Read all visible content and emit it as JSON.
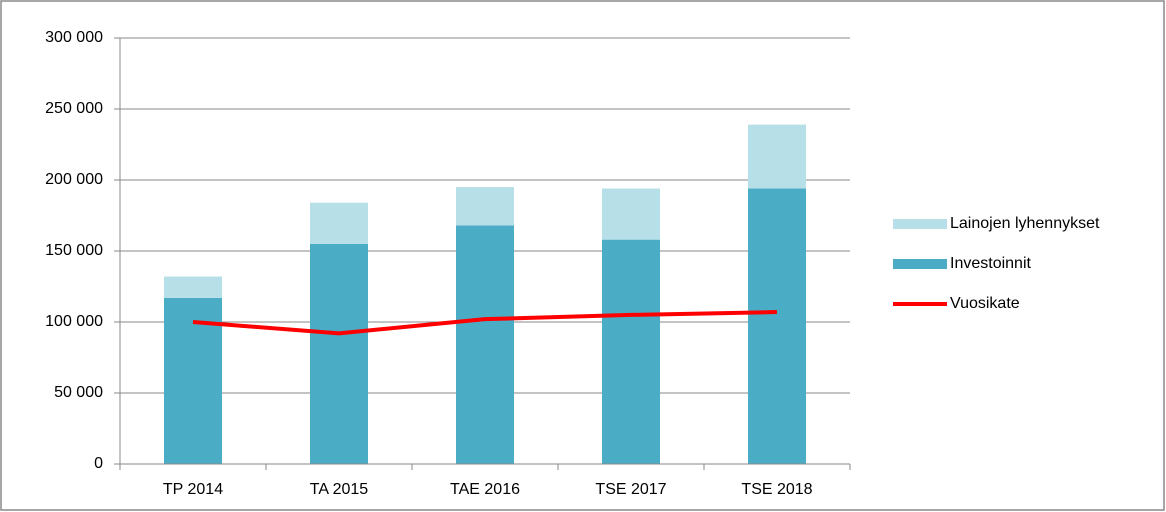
{
  "chart_data": {
    "type": "bar",
    "stacked": true,
    "categories": [
      "TP 2014",
      "TA 2015",
      "TAE 2016",
      "TSE 2017",
      "TSE 2018"
    ],
    "series": [
      {
        "name": "Investoinnit",
        "color": "#4bacc6",
        "type": "bar",
        "values": [
          117000,
          155000,
          168000,
          158000,
          194000
        ]
      },
      {
        "name": "Lainojen lyhennykset",
        "color": "#b7dfe8",
        "type": "bar",
        "values": [
          15000,
          29000,
          27000,
          36000,
          45000
        ]
      },
      {
        "name": "Vuosikate",
        "color": "#ff0000",
        "type": "line",
        "values": [
          100000,
          92000,
          102000,
          105000,
          107000
        ]
      }
    ],
    "ylim": [
      0,
      300000
    ],
    "yticks": [
      0,
      {
        "value": 50000,
        "label": "50 000"
      },
      {
        "value": 100000,
        "label": "100 000"
      },
      {
        "value": 150000,
        "label": "150 000"
      },
      {
        "value": 200000,
        "label": "200 000"
      },
      {
        "value": 250000,
        "label": "250 000"
      },
      {
        "value": 300000,
        "label": "300 000"
      }
    ],
    "grid": true,
    "legend": "right"
  }
}
